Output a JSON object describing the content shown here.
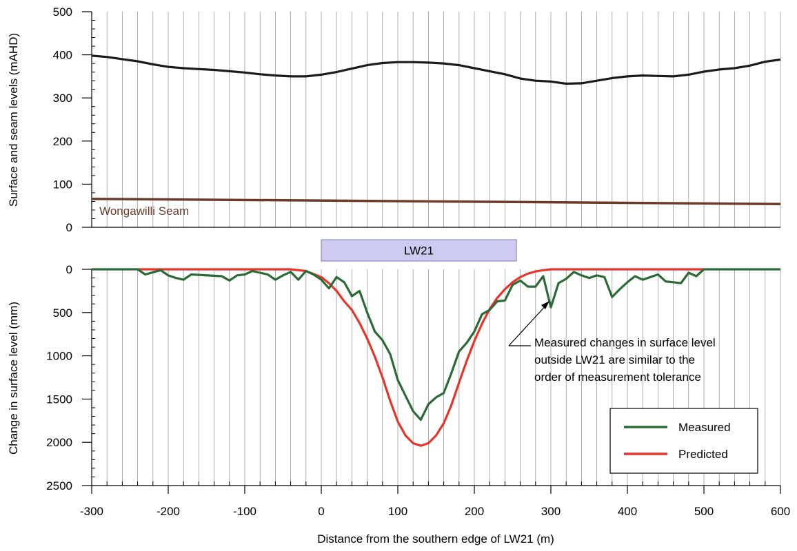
{
  "chart_data": [
    {
      "id": "top",
      "type": "line",
      "ylabel": "Surface and seam levels (mAHD)",
      "xlim": [
        -300,
        600
      ],
      "ylim": [
        0,
        500
      ],
      "yticks": [
        0,
        100,
        200,
        300,
        400,
        500
      ],
      "grid": true,
      "series": [
        {
          "key": "surface",
          "color": "#1a1a1a",
          "x": [
            -300,
            -280,
            -260,
            -240,
            -220,
            -200,
            -180,
            -160,
            -140,
            -120,
            -100,
            -80,
            -60,
            -40,
            -20,
            0,
            20,
            40,
            60,
            80,
            100,
            120,
            140,
            160,
            180,
            200,
            220,
            240,
            260,
            280,
            300,
            320,
            340,
            360,
            380,
            400,
            420,
            440,
            460,
            480,
            500,
            520,
            540,
            560,
            580,
            600
          ],
          "y": [
            398,
            395,
            390,
            385,
            378,
            372,
            369,
            367,
            365,
            362,
            359,
            355,
            352,
            350,
            350,
            354,
            360,
            368,
            376,
            381,
            383,
            383,
            382,
            380,
            376,
            369,
            362,
            355,
            345,
            340,
            338,
            333,
            334,
            340,
            346,
            350,
            352,
            351,
            350,
            354,
            361,
            366,
            369,
            375,
            384,
            389
          ]
        },
        {
          "key": "seam",
          "name": "Wongawilli Seam",
          "color": "#6b3a2a",
          "x": [
            -300,
            600
          ],
          "y": [
            66,
            54
          ]
        }
      ],
      "annotations": [
        {
          "key": "seam_label",
          "text": "Wongawilli Seam",
          "x": -290,
          "y": 38
        }
      ]
    },
    {
      "id": "bottom",
      "type": "line",
      "xlabel": "Distance from the southern edge of LW21 (m)",
      "ylabel": "Change in surface level (mm)",
      "xlim": [
        -300,
        600
      ],
      "ylim": [
        0,
        2500
      ],
      "yaxis_inverted": true,
      "xticks": [
        -300,
        -200,
        -100,
        0,
        100,
        200,
        300,
        400,
        500,
        600
      ],
      "xticklabels": [
        "-300",
        "-200",
        "-100",
        "0",
        "100",
        "200",
        "300",
        "400",
        "500",
        "600"
      ],
      "yticks": [
        0,
        500,
        1000,
        1500,
        2000,
        2500
      ],
      "grid": true,
      "legend_position": "bottom-right",
      "panel": {
        "label": "LW21",
        "x_start": 0,
        "x_end": 255
      },
      "series": [
        {
          "name": "Measured",
          "color": "#2a6a35",
          "x": [
            -300,
            -240,
            -230,
            -210,
            -200,
            -190,
            -180,
            -170,
            -130,
            -120,
            -110,
            -100,
            -90,
            -80,
            -70,
            -60,
            -50,
            -40,
            -30,
            -20,
            -10,
            0,
            10,
            20,
            30,
            40,
            50,
            60,
            70,
            80,
            90,
            100,
            110,
            120,
            130,
            140,
            150,
            160,
            170,
            180,
            190,
            200,
            210,
            220,
            230,
            240,
            250,
            260,
            270,
            280,
            290,
            300,
            310,
            320,
            330,
            340,
            350,
            360,
            370,
            380,
            390,
            400,
            410,
            420,
            430,
            440,
            450,
            460,
            470,
            480,
            490,
            500,
            600
          ],
          "y": [
            0,
            0,
            60,
            10,
            70,
            100,
            120,
            60,
            80,
            130,
            70,
            60,
            20,
            40,
            60,
            120,
            70,
            30,
            120,
            20,
            60,
            120,
            220,
            90,
            150,
            310,
            250,
            500,
            720,
            820,
            980,
            1280,
            1460,
            1640,
            1740,
            1560,
            1480,
            1430,
            1200,
            950,
            850,
            720,
            520,
            470,
            370,
            360,
            180,
            130,
            200,
            200,
            80,
            440,
            160,
            110,
            30,
            70,
            100,
            70,
            90,
            320,
            230,
            150,
            80,
            120,
            90,
            60,
            140,
            150,
            160,
            40,
            80,
            0,
            0
          ]
        },
        {
          "name": "Predicted",
          "color": "#e8332a",
          "x": [
            -240,
            -40,
            -20,
            0,
            10,
            20,
            30,
            40,
            50,
            60,
            70,
            80,
            90,
            100,
            110,
            120,
            130,
            140,
            150,
            160,
            170,
            180,
            190,
            200,
            210,
            220,
            230,
            240,
            250,
            260,
            270,
            280,
            290,
            300,
            500
          ],
          "y": [
            0,
            0,
            20,
            90,
            160,
            250,
            370,
            470,
            620,
            800,
            1010,
            1250,
            1520,
            1760,
            1920,
            2010,
            2040,
            2010,
            1920,
            1780,
            1570,
            1310,
            1060,
            830,
            630,
            460,
            330,
            230,
            150,
            90,
            50,
            25,
            10,
            0,
            0
          ]
        }
      ],
      "annotations": [
        {
          "key": "tolerance_note",
          "lines": [
            "Measured changes in surface level",
            "outside LW21 are similar to the",
            "order of measurement tolerance"
          ]
        }
      ]
    }
  ]
}
